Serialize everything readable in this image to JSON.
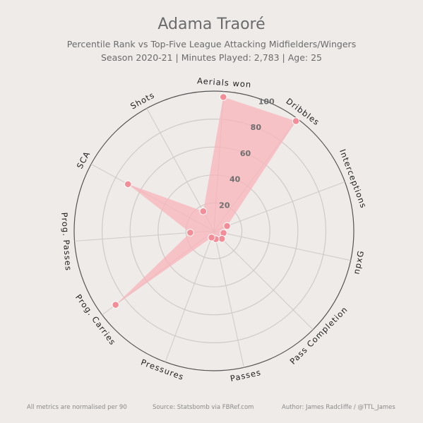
{
  "header": {
    "title": "Adama Traoré",
    "subtitle_line1": "Percentile Rank vs Top-Five League Attacking Midfielders/Wingers",
    "subtitle_line2": "Season 2020-21 | Minutes Played: 2,783 | Age: 25"
  },
  "footer": {
    "note": "All metrics are normalised per 90",
    "source": "Source: Statsbomb via FBRef.com",
    "author": "Author: James Radcliffe / @TTL_James"
  },
  "colors": {
    "background": "#efebe8",
    "fill": "#f7b6bd",
    "point": "#f38d97",
    "grid": "#cfcac7",
    "outer_ring": "#555555",
    "text": "#6b6b6b"
  },
  "chart_data": {
    "type": "radar",
    "scale": {
      "min": 0,
      "max": 100
    },
    "r_tick_labels": [
      "20",
      "40",
      "60",
      "80",
      "100"
    ],
    "categories": [
      "Aerials won",
      "Dribbles",
      "Interceptions",
      "npxG",
      "Pass Completion",
      "Passes",
      "Pressures",
      "Prog. Carries",
      "Prog. Passes",
      "SCA",
      "Shots"
    ],
    "values": [
      96,
      98,
      10,
      7,
      8,
      6,
      5,
      88,
      17,
      70,
      16
    ],
    "grid": true
  }
}
